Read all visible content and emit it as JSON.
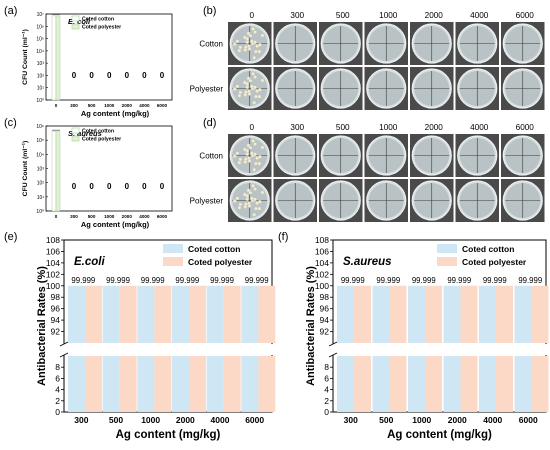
{
  "panel_labels": {
    "a": "(a)",
    "b": "(b)",
    "c": "(c)",
    "d": "(d)",
    "e": "(e)",
    "f": "(f)"
  },
  "plate_grid": {
    "b": {
      "concentrations": [
        "0",
        "300",
        "500",
        "1000",
        "2000",
        "4000",
        "6000"
      ],
      "rows": [
        "Cotton",
        "Polyester"
      ]
    },
    "d": {
      "concentrations": [
        "0",
        "300",
        "500",
        "1000",
        "2000",
        "4000",
        "6000"
      ],
      "rows": [
        "Cotton",
        "Polyester"
      ]
    }
  },
  "colors": {
    "cotton_fill": "#cfe6f5",
    "polyester_fill": "#fcd9c6",
    "cotton_small_fill": "#ffffff",
    "polyester_small_fill": "#dff2d4",
    "plate_bg": "#4a4a4a",
    "dish_fill": "#b9c3c6"
  },
  "chart_data": [
    {
      "id": "a",
      "type": "bar",
      "title": "E. coli",
      "xlabel": "Ag content (mg/kg)",
      "ylabel": "CFU Count (ml⁻¹)",
      "yscale": "log",
      "ylim": [
        1,
        10000000
      ],
      "ytick_labels": [
        "10⁰",
        "10¹",
        "10²",
        "10³",
        "10⁴",
        "10⁵",
        "10⁶",
        "10⁷"
      ],
      "categories": [
        "0",
        "300",
        "500",
        "1000",
        "2000",
        "4000",
        "6000"
      ],
      "series": [
        {
          "name": "Coted cotton",
          "values": [
            7000000,
            0,
            0,
            0,
            0,
            0,
            0
          ]
        },
        {
          "name": "Coted polyester",
          "values": [
            7000000,
            0,
            0,
            0,
            0,
            0,
            0
          ]
        }
      ],
      "data_labels": [
        "0",
        "0",
        "0",
        "0",
        "0",
        "0"
      ],
      "legend": "top-right"
    },
    {
      "id": "c",
      "type": "bar",
      "title": "S. aureus",
      "xlabel": "Ag content (mg/kg)",
      "ylabel": "CFU Count (ml⁻¹)",
      "yscale": "log",
      "ylim": [
        1,
        1000000
      ],
      "ytick_labels": [
        "10⁰",
        "10¹",
        "10²",
        "10³",
        "10⁴",
        "10⁵",
        "10⁶"
      ],
      "categories": [
        "0",
        "300",
        "500",
        "1000",
        "2000",
        "4000",
        "6000"
      ],
      "series": [
        {
          "name": "Coted cotton",
          "values": [
            400000,
            0,
            0,
            0,
            0,
            0,
            0
          ]
        },
        {
          "name": "Coted polyester",
          "values": [
            400000,
            0,
            0,
            0,
            0,
            0,
            0
          ]
        }
      ],
      "data_labels": [
        "0",
        "0",
        "0",
        "0",
        "0",
        "0"
      ],
      "legend": "top-right"
    },
    {
      "id": "e",
      "type": "bar",
      "title": "E.coli",
      "xlabel": "Ag content (mg/kg)",
      "ylabel": "Antibacterial Rates (%)",
      "broken_axis": {
        "lower": [
          0,
          10
        ],
        "upper": [
          90,
          108
        ]
      },
      "yticks_upper": [
        92,
        94,
        96,
        98,
        100,
        102,
        104,
        106,
        108
      ],
      "yticks_lower": [
        0,
        2,
        4,
        6,
        8
      ],
      "categories": [
        "300",
        "500",
        "1000",
        "2000",
        "4000",
        "6000"
      ],
      "series": [
        {
          "name": "Coted cotton",
          "values": [
            99.999,
            99.999,
            99.999,
            99.999,
            99.999,
            99.999
          ]
        },
        {
          "name": "Coted polyester",
          "values": [
            99.999,
            99.999,
            99.999,
            99.999,
            99.999,
            99.999
          ]
        }
      ],
      "data_labels": [
        "99.999",
        "99.999",
        "99.999",
        "99.999",
        "99.999",
        "99.999"
      ],
      "legend": "top-right"
    },
    {
      "id": "f",
      "type": "bar",
      "title": "S.aureus",
      "xlabel": "Ag content (mg/kg)",
      "ylabel": "Antibacterial Rates (%)",
      "broken_axis": {
        "lower": [
          0,
          10
        ],
        "upper": [
          90,
          108
        ]
      },
      "yticks_upper": [
        92,
        94,
        96,
        98,
        100,
        102,
        104,
        106,
        108
      ],
      "yticks_lower": [
        0,
        2,
        4,
        6,
        8
      ],
      "categories": [
        "300",
        "500",
        "1000",
        "2000",
        "4000",
        "6000"
      ],
      "series": [
        {
          "name": "Coted cotton",
          "values": [
            99.999,
            99.999,
            99.999,
            99.999,
            99.999,
            99.999
          ]
        },
        {
          "name": "Coted polyester",
          "values": [
            99.999,
            99.999,
            99.999,
            99.999,
            99.999,
            99.999
          ]
        }
      ],
      "data_labels": [
        "99.999",
        "99.999",
        "99.999",
        "99.999",
        "99.999",
        "99.999"
      ],
      "legend": "top-right"
    }
  ]
}
